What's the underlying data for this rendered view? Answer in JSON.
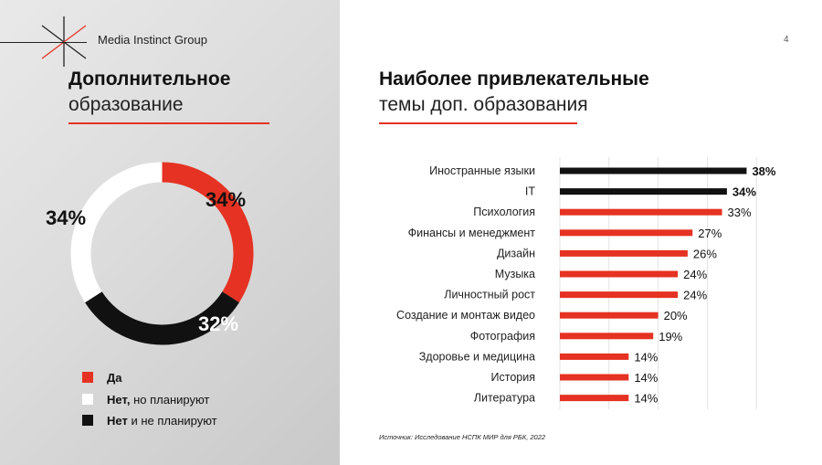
{
  "header": {
    "brand": "Media Instinct Group",
    "page_number": "4"
  },
  "left": {
    "title_bold": "Дополнительное",
    "title_light": "образование",
    "legend": [
      {
        "bold": "Да",
        "rest": "",
        "color": "#e53222"
      },
      {
        "bold": "Нет,",
        "rest": " но планируют",
        "color": "#ffffff"
      },
      {
        "bold": "Нет",
        "rest": " и не планируют",
        "color": "#111111"
      }
    ]
  },
  "right": {
    "title_bold": "Наиболее привлекательные",
    "title_light": "темы доп. образования",
    "source": "Источник: Исследование НСПК МИР для РБК, 2022"
  },
  "chart_data": [
    {
      "type": "pie",
      "style": "donut",
      "labels": [
        "Да",
        "Нет, но планируют",
        "Нет и не планируют"
      ],
      "values": [
        34,
        34,
        32
      ],
      "value_labels": [
        "34%",
        "34%",
        "32%"
      ],
      "colors": [
        "#e53222",
        "#ffffff",
        "#111111"
      ]
    },
    {
      "type": "bar",
      "orientation": "horizontal",
      "categories": [
        "Иностранные языки",
        "IT",
        "Психология",
        "Финансы и менеджмент",
        "Дизайн",
        "Музыка",
        "Личностный рост",
        "Создание и монтаж видео",
        "Фотография",
        "Здоровье и медицина",
        "История",
        "Литература"
      ],
      "values": [
        38,
        34,
        33,
        27,
        26,
        24,
        24,
        20,
        19,
        14,
        14,
        14
      ],
      "value_labels": [
        "38%",
        "34%",
        "33%",
        "27%",
        "26%",
        "24%",
        "24%",
        "20%",
        "19%",
        "14%",
        "14%",
        "14%"
      ],
      "colors": [
        "#111111",
        "#111111",
        "#e53222",
        "#e53222",
        "#e53222",
        "#e53222",
        "#e53222",
        "#e53222",
        "#e53222",
        "#e53222",
        "#e53222",
        "#e53222"
      ],
      "xlim": [
        0,
        40
      ],
      "grid": true
    }
  ]
}
